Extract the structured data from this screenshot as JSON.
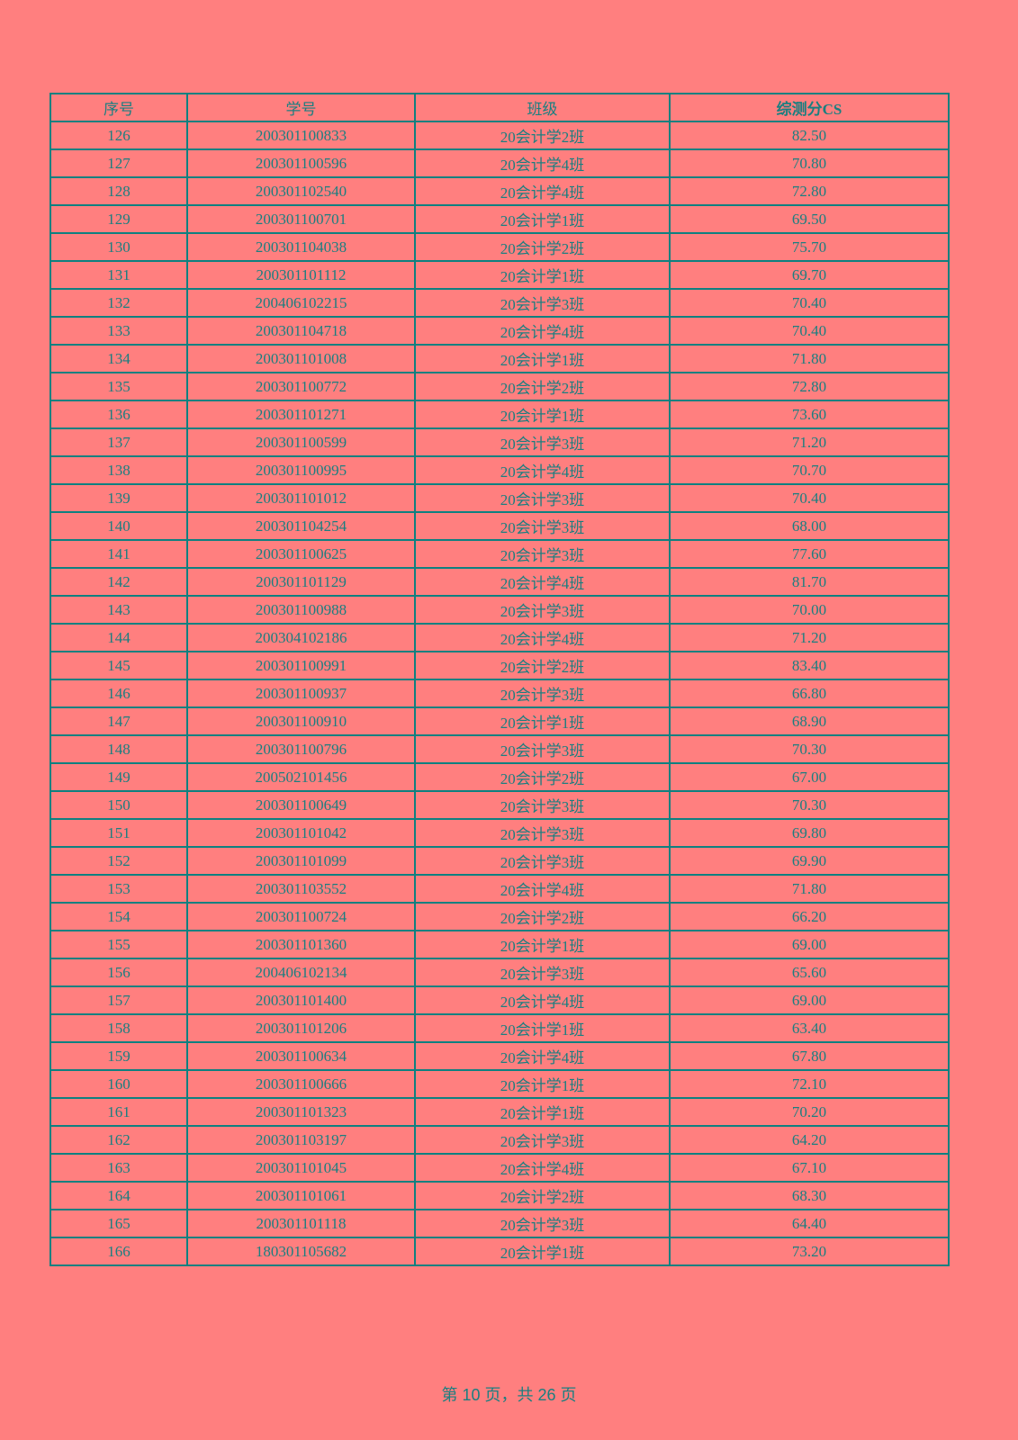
{
  "table": {
    "headers": [
      "序号",
      "学号",
      "班级",
      "综测分CS"
    ],
    "rows": [
      [
        "126",
        "200301100833",
        "20会计学2班",
        "82.50"
      ],
      [
        "127",
        "200301100596",
        "20会计学4班",
        "70.80"
      ],
      [
        "128",
        "200301102540",
        "20会计学4班",
        "72.80"
      ],
      [
        "129",
        "200301100701",
        "20会计学1班",
        "69.50"
      ],
      [
        "130",
        "200301104038",
        "20会计学2班",
        "75.70"
      ],
      [
        "131",
        "200301101112",
        "20会计学1班",
        "69.70"
      ],
      [
        "132",
        "200406102215",
        "20会计学3班",
        "70.40"
      ],
      [
        "133",
        "200301104718",
        "20会计学4班",
        "70.40"
      ],
      [
        "134",
        "200301101008",
        "20会计学1班",
        "71.80"
      ],
      [
        "135",
        "200301100772",
        "20会计学2班",
        "72.80"
      ],
      [
        "136",
        "200301101271",
        "20会计学1班",
        "73.60"
      ],
      [
        "137",
        "200301100599",
        "20会计学3班",
        "71.20"
      ],
      [
        "138",
        "200301100995",
        "20会计学4班",
        "70.70"
      ],
      [
        "139",
        "200301101012",
        "20会计学3班",
        "70.40"
      ],
      [
        "140",
        "200301104254",
        "20会计学3班",
        "68.00"
      ],
      [
        "141",
        "200301100625",
        "20会计学3班",
        "77.60"
      ],
      [
        "142",
        "200301101129",
        "20会计学4班",
        "81.70"
      ],
      [
        "143",
        "200301100988",
        "20会计学3班",
        "70.00"
      ],
      [
        "144",
        "200304102186",
        "20会计学4班",
        "71.20"
      ],
      [
        "145",
        "200301100991",
        "20会计学2班",
        "83.40"
      ],
      [
        "146",
        "200301100937",
        "20会计学3班",
        "66.80"
      ],
      [
        "147",
        "200301100910",
        "20会计学1班",
        "68.90"
      ],
      [
        "148",
        "200301100796",
        "20会计学3班",
        "70.30"
      ],
      [
        "149",
        "200502101456",
        "20会计学2班",
        "67.00"
      ],
      [
        "150",
        "200301100649",
        "20会计学3班",
        "70.30"
      ],
      [
        "151",
        "200301101042",
        "20会计学3班",
        "69.80"
      ],
      [
        "152",
        "200301101099",
        "20会计学3班",
        "69.90"
      ],
      [
        "153",
        "200301103552",
        "20会计学4班",
        "71.80"
      ],
      [
        "154",
        "200301100724",
        "20会计学2班",
        "66.20"
      ],
      [
        "155",
        "200301101360",
        "20会计学1班",
        "69.00"
      ],
      [
        "156",
        "200406102134",
        "20会计学3班",
        "65.60"
      ],
      [
        "157",
        "200301101400",
        "20会计学4班",
        "69.00"
      ],
      [
        "158",
        "200301101206",
        "20会计学1班",
        "63.40"
      ],
      [
        "159",
        "200301100634",
        "20会计学4班",
        "67.80"
      ],
      [
        "160",
        "200301100666",
        "20会计学1班",
        "72.10"
      ],
      [
        "161",
        "200301101323",
        "20会计学1班",
        "70.20"
      ],
      [
        "162",
        "200301103197",
        "20会计学3班",
        "64.20"
      ],
      [
        "163",
        "200301101045",
        "20会计学4班",
        "67.10"
      ],
      [
        "164",
        "200301101061",
        "20会计学2班",
        "68.30"
      ],
      [
        "165",
        "200301101118",
        "20会计学3班",
        "64.40"
      ],
      [
        "166",
        "180301105682",
        "20会计学1班",
        "73.20"
      ]
    ]
  },
  "footer": {
    "page_label": "第 10 页，共 26 页"
  },
  "colors": {
    "background": "#ff7f7f",
    "border": "#0e8080",
    "text": "#1a7f80"
  }
}
